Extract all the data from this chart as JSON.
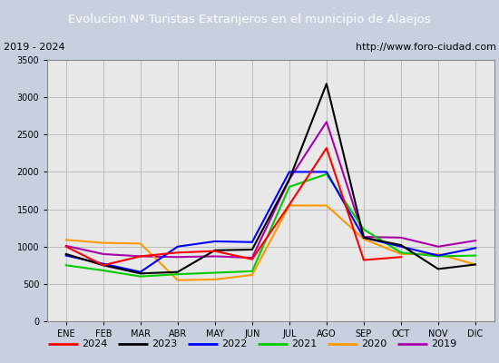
{
  "title": "Evolucion Nº Turistas Extranjeros en el municipio de Alaejos",
  "subtitle_left": "2019 - 2024",
  "subtitle_right": "http://www.foro-ciudad.com",
  "title_bg_color": "#4a7abf",
  "title_text_color": "#ffffff",
  "plot_bg_color": "#e8e8e8",
  "outer_bg_color": "#c8d0e0",
  "months": [
    "ENE",
    "FEB",
    "MAR",
    "ABR",
    "MAY",
    "JUN",
    "JUL",
    "AGO",
    "SEP",
    "OCT",
    "NOV",
    "DIC"
  ],
  "ylim": [
    0,
    3500
  ],
  "yticks": [
    0,
    500,
    1000,
    1500,
    2000,
    2500,
    3000,
    3500
  ],
  "series": {
    "2024": {
      "color": "#ff0000",
      "data": [
        1000,
        750,
        870,
        920,
        940,
        830,
        1560,
        2320,
        820,
        860,
        null,
        null
      ]
    },
    "2023": {
      "color": "#000000",
      "data": [
        900,
        750,
        640,
        660,
        950,
        960,
        1900,
        3180,
        1120,
        1020,
        700,
        760
      ]
    },
    "2022": {
      "color": "#0000ff",
      "data": [
        880,
        770,
        660,
        1000,
        1070,
        1060,
        2000,
        2000,
        1120,
        1000,
        880,
        980
      ]
    },
    "2021": {
      "color": "#00cc00",
      "data": [
        750,
        680,
        600,
        630,
        650,
        670,
        1800,
        1970,
        1230,
        920,
        870,
        880
      ]
    },
    "2020": {
      "color": "#ff9900",
      "data": [
        1090,
        1050,
        1040,
        550,
        560,
        620,
        1550,
        1550,
        1100,
        900,
        900,
        760
      ]
    },
    "2019": {
      "color": "#aa00aa",
      "data": [
        1010,
        900,
        870,
        860,
        870,
        850,
        1900,
        2670,
        1130,
        1120,
        1000,
        1080
      ]
    }
  },
  "legend_years": [
    "2024",
    "2023",
    "2022",
    "2021",
    "2020",
    "2019"
  ]
}
